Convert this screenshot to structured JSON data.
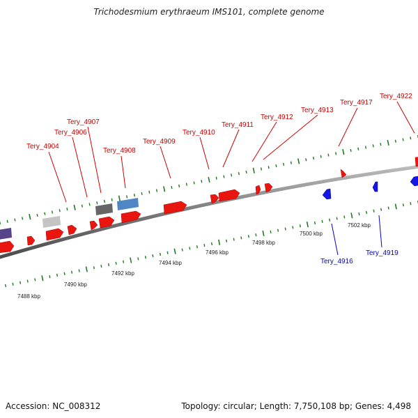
{
  "title": "Trichodesmium erythraeum IMS101, complete genome",
  "accession": "Accession: NC_008312",
  "topology": "Topology: circular; Length: 7,750,108 bp; Genes: 4,498",
  "colors": {
    "forward_gene": "#e8160f",
    "reverse_gene": "#1515e6",
    "label_forward": "#cc0000",
    "label_reverse": "#0000cc",
    "tick": "#1f7a1f",
    "backbone": "#888888",
    "gene_light_gray": "#c4c4c4",
    "gene_dark_gray": "#666666",
    "gene_steel_blue": "#4f86c6",
    "gene_purple": "#55448a"
  },
  "scale_labels": [
    "7488 kbp",
    "7490 kbp",
    "7492 kbp",
    "7494 kbp",
    "7496 kbp",
    "7498 kbp",
    "7500 kbp",
    "7502 kbp"
  ],
  "forward_labels": [
    "Tery_4904",
    "Tery_4906",
    "Tery_4907",
    "Tery_4908",
    "Tery_4909",
    "Tery_4910",
    "Tery_4911",
    "Tery_4912",
    "Tery_4913",
    "Tery_4917",
    "Tery_4922"
  ],
  "reverse_labels": [
    "Tery_4916",
    "Tery_4919"
  ]
}
